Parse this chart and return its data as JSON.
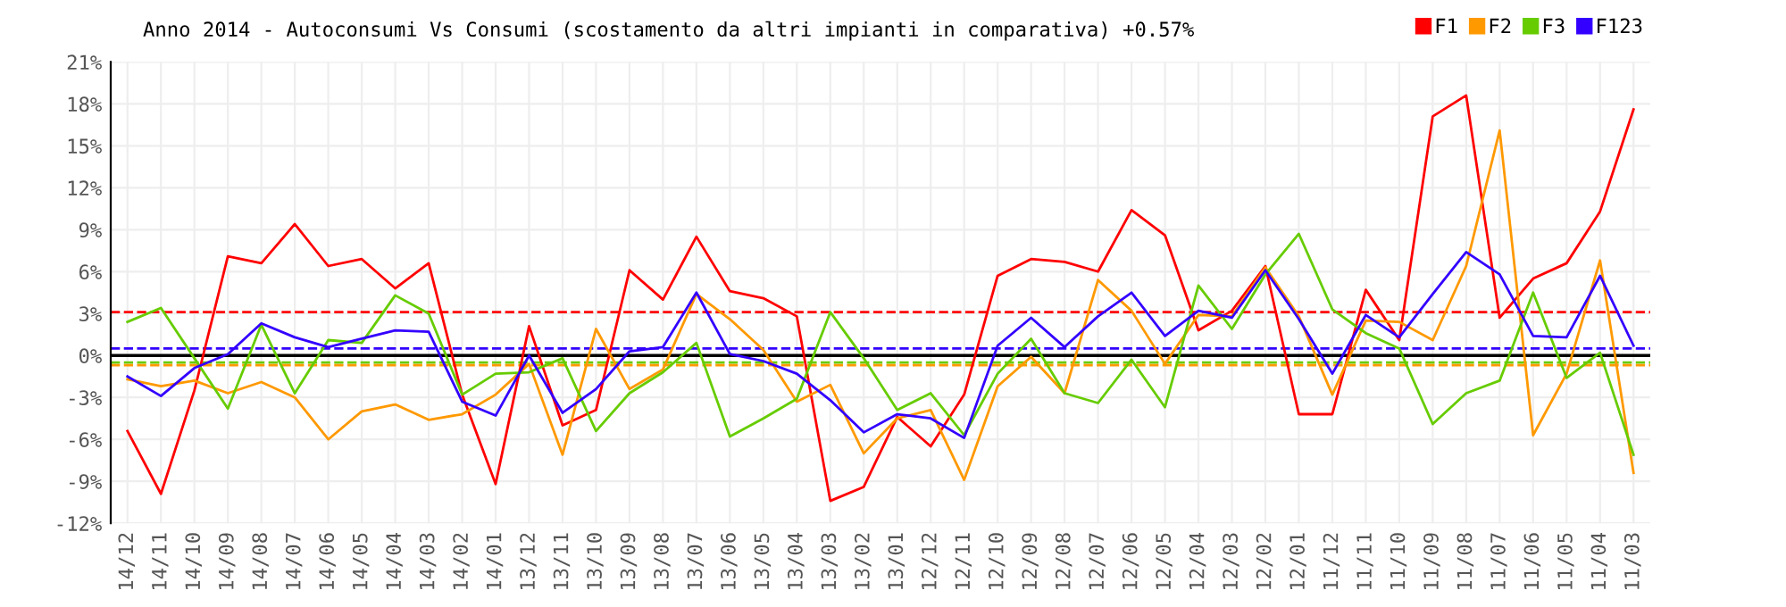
{
  "chart_data": {
    "type": "line",
    "title": "Anno 2014 - Autoconsumi Vs Consumi (scostamento da altri impianti in comparativa) +0.57%",
    "categories": [
      "14/12",
      "14/11",
      "14/10",
      "14/09",
      "14/08",
      "14/07",
      "14/06",
      "14/05",
      "14/04",
      "14/03",
      "14/02",
      "14/01",
      "13/12",
      "13/11",
      "13/10",
      "13/09",
      "13/08",
      "13/07",
      "13/06",
      "13/05",
      "13/04",
      "13/03",
      "13/02",
      "13/01",
      "12/12",
      "12/11",
      "12/10",
      "12/09",
      "12/08",
      "12/07",
      "12/06",
      "12/05",
      "12/04",
      "12/03",
      "12/02",
      "12/01",
      "11/12",
      "11/11",
      "11/10",
      "11/09",
      "11/08",
      "11/07",
      "11/06",
      "11/05",
      "11/04",
      "11/03"
    ],
    "series": [
      {
        "name": "F1",
        "color": "#ff0000",
        "values": [
          -5.4,
          -9.9,
          -2.5,
          7.1,
          6.6,
          9.4,
          6.4,
          6.9,
          4.8,
          6.6,
          -2.8,
          -9.2,
          2.1,
          -5.0,
          -3.9,
          6.1,
          4.0,
          8.5,
          4.6,
          4.1,
          2.8,
          -10.4,
          -9.4,
          -4.4,
          -6.5,
          -2.8,
          5.7,
          6.9,
          6.7,
          6.0,
          10.4,
          8.6,
          1.8,
          3.2,
          6.4,
          -4.2,
          -4.2,
          4.7,
          1.1,
          17.1,
          18.6,
          2.7,
          5.5,
          6.6,
          10.3,
          17.6
        ]
      },
      {
        "name": "F2",
        "color": "#ff9900",
        "values": [
          -1.7,
          -2.2,
          -1.8,
          -2.7,
          -1.9,
          -3.0,
          -6.0,
          -4.0,
          -3.5,
          -4.6,
          -4.2,
          -2.8,
          -0.6,
          -7.1,
          1.9,
          -2.4,
          -1.0,
          4.4,
          2.6,
          0.4,
          -3.3,
          -2.1,
          -7.0,
          -4.5,
          -3.9,
          -8.9,
          -2.2,
          -0.1,
          -2.7,
          5.4,
          3.2,
          -0.6,
          2.9,
          2.8,
          6.3,
          2.8,
          -2.8,
          2.5,
          2.4,
          1.1,
          6.4,
          16.1,
          -5.7,
          -1.3,
          6.8,
          -8.4
        ]
      },
      {
        "name": "F3",
        "color": "#66cc00",
        "values": [
          2.4,
          3.4,
          -0.2,
          -3.8,
          2.2,
          -2.7,
          1.1,
          0.9,
          4.3,
          3.0,
          -2.8,
          -1.3,
          -1.2,
          -0.2,
          -5.4,
          -2.7,
          -1.2,
          0.9,
          -5.8,
          -4.5,
          -3.1,
          3.1,
          -0.2,
          -3.9,
          -2.7,
          -5.7,
          -1.3,
          1.2,
          -2.7,
          -3.4,
          -0.3,
          -3.7,
          5.0,
          1.9,
          5.8,
          8.7,
          3.3,
          1.6,
          0.5,
          -4.9,
          -2.7,
          -1.8,
          4.5,
          -1.6,
          0.2,
          -7.1
        ]
      },
      {
        "name": "F123",
        "color": "#3300ff",
        "values": [
          -1.5,
          -2.9,
          -0.9,
          0.1,
          2.3,
          1.3,
          0.6,
          1.2,
          1.8,
          1.7,
          -3.3,
          -4.3,
          0.0,
          -4.1,
          -2.4,
          0.3,
          0.6,
          4.5,
          0.1,
          -0.4,
          -1.3,
          -3.2,
          -5.5,
          -4.2,
          -4.5,
          -5.9,
          0.7,
          2.7,
          0.6,
          2.8,
          4.5,
          1.4,
          3.2,
          2.7,
          6.1,
          2.6,
          -1.3,
          2.9,
          1.3,
          4.4,
          7.4,
          5.8,
          1.4,
          1.3,
          5.7,
          0.7
        ]
      }
    ],
    "ylim": [
      -12,
      21
    ],
    "yticks": [
      {
        "value": -12,
        "label": "-12%"
      },
      {
        "value": -9,
        "label": "-9%"
      },
      {
        "value": -6,
        "label": "-6%"
      },
      {
        "value": -3,
        "label": "-3%"
      },
      {
        "value": 0,
        "label": "0%"
      },
      {
        "value": 3,
        "label": "3%"
      },
      {
        "value": 6,
        "label": "6%"
      },
      {
        "value": 9,
        "label": "9%"
      },
      {
        "value": 12,
        "label": "12%"
      },
      {
        "value": 15,
        "label": "15%"
      },
      {
        "value": 18,
        "label": "18%"
      },
      {
        "value": 21,
        "label": "21%"
      }
    ],
    "ref_lines": [
      {
        "axis": "y",
        "value": 0,
        "color": "#000000",
        "line_style": "solid"
      },
      {
        "axis": "y",
        "value": 3.1,
        "color": "#ff0000",
        "line_style": "dashed"
      },
      {
        "axis": "y",
        "value": 0.5,
        "color": "#3300ff",
        "line_style": "dashed"
      },
      {
        "axis": "y",
        "value": -0.5,
        "color": "#66cc00",
        "line_style": "dashed"
      },
      {
        "axis": "y",
        "value": -0.7,
        "color": "#ff9900",
        "line_style": "dashed"
      }
    ],
    "grid": true,
    "legend": "top right",
    "marker": "none",
    "line_style": "solid"
  }
}
